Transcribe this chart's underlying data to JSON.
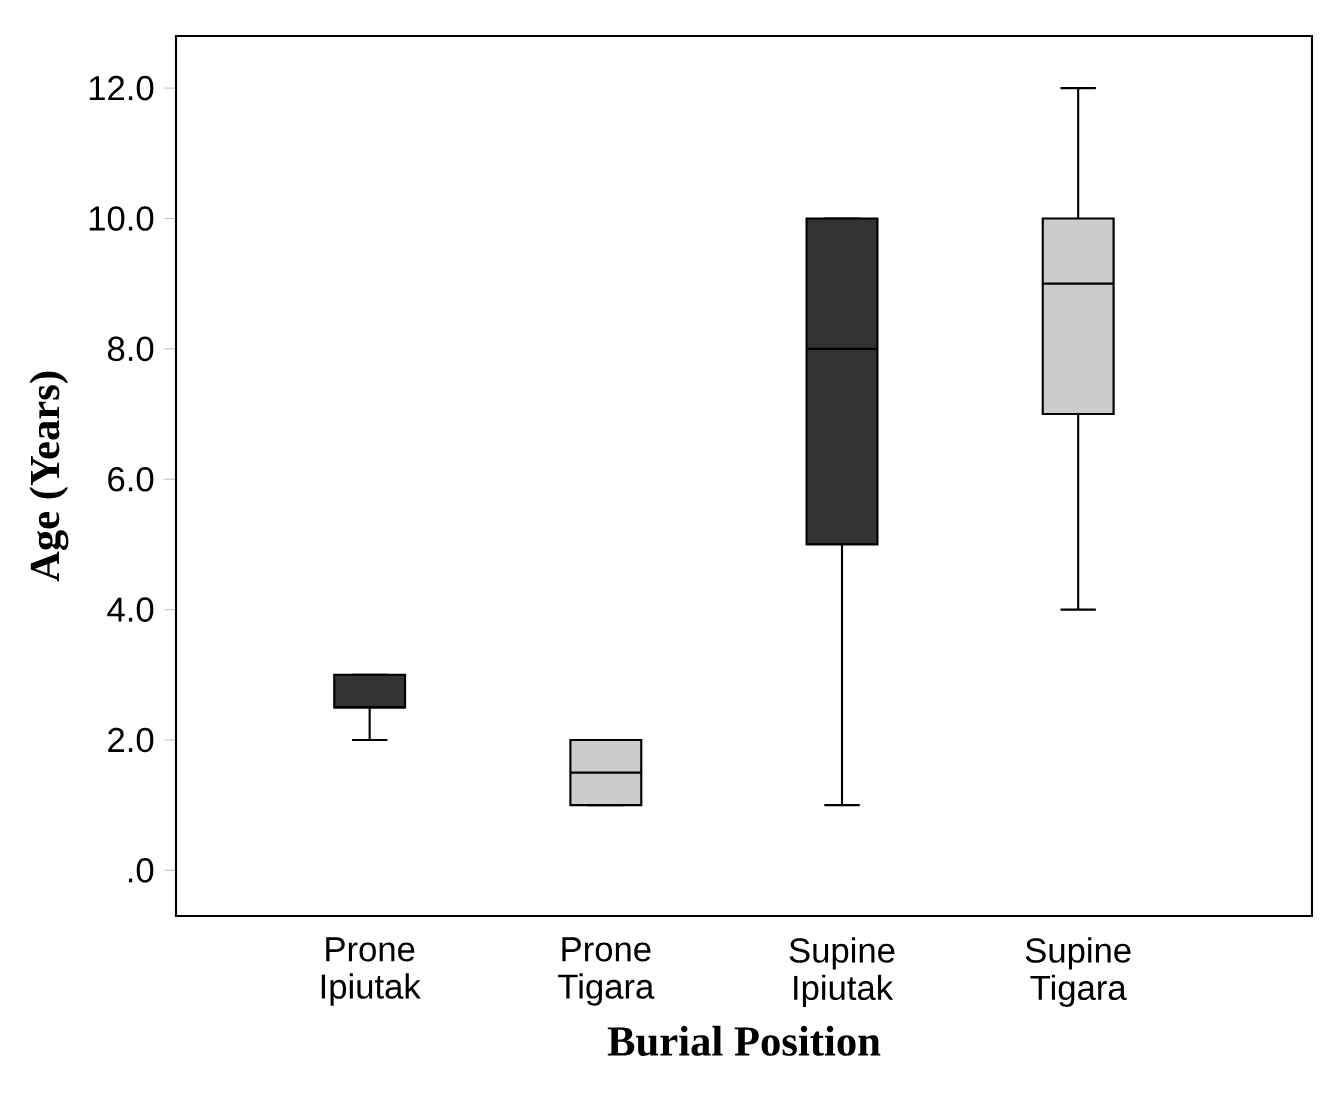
{
  "chart_data": {
    "type": "box",
    "xlabel": "Burial Position",
    "ylabel": "Age (Years)",
    "categories": [
      "Prone Ipiutak",
      "Prone Tigara",
      "Supine Ipiutak",
      "Supine Tigara"
    ],
    "colors": [
      "#333333",
      "#cccccc",
      "#333333",
      "#cccccc"
    ],
    "boxes": [
      {
        "low": 2,
        "q1": 2.5,
        "median": 2.5,
        "q3": 3,
        "high": 3
      },
      {
        "low": 1,
        "q1": 1,
        "median": 1.5,
        "q3": 2,
        "high": 2
      },
      {
        "low": 1,
        "q1": 5,
        "median": 8,
        "q3": 10,
        "high": 10
      },
      {
        "low": 4,
        "q1": 7,
        "median": 9,
        "q3": 10,
        "high": 12
      }
    ],
    "ylim": [
      -0.7,
      12.8
    ],
    "yticks": [
      {
        "value": 0,
        "label": ".0"
      },
      {
        "value": 2,
        "label": "2.0"
      },
      {
        "value": 4,
        "label": "4.0"
      },
      {
        "value": 6,
        "label": "6.0"
      },
      {
        "value": 8,
        "label": "8.0"
      },
      {
        "value": 10,
        "label": "10.0"
      },
      {
        "value": 12,
        "label": "12.0"
      }
    ]
  }
}
